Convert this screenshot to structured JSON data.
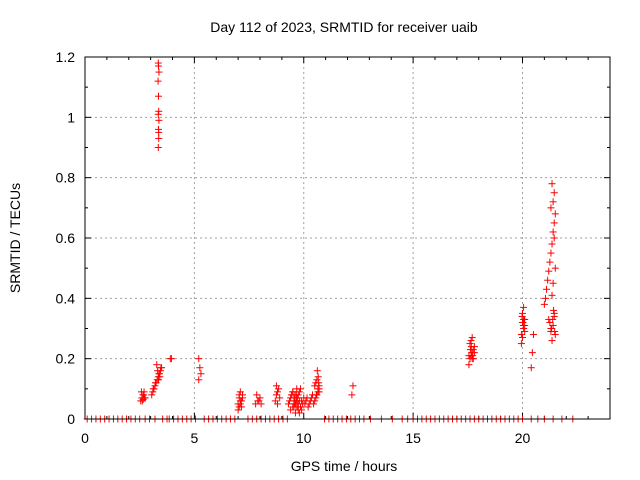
{
  "chart_data": {
    "type": "scatter",
    "title": "Day 112 of 2023, SRMTID for receiver uaib",
    "xlabel": "GPS time / hours",
    "ylabel": "SRMTID / TECUs",
    "xlim": [
      0,
      24
    ],
    "ylim": [
      0,
      1.2
    ],
    "xticks": [
      0,
      5,
      10,
      15,
      20
    ],
    "xtick_labels": [
      "0",
      "5",
      "10",
      "15",
      "20"
    ],
    "yticks": [
      0,
      0.2,
      0.4,
      0.6,
      0.8,
      1,
      1.2
    ],
    "ytick_labels": [
      "0",
      "0.2",
      "0.4",
      "0.6",
      "0.8",
      "1",
      "1.2"
    ],
    "grid": true,
    "marker": "+",
    "color": "#ff0000",
    "series": [
      {
        "name": "SRMTID",
        "x": [
          0.1,
          0.3,
          0.5,
          0.7,
          0.9,
          1.1,
          1.3,
          1.5,
          1.7,
          1.9,
          2.1,
          2.3,
          2.5,
          2.75,
          2.95,
          3.2,
          3.55,
          3.75,
          3.85,
          4.05,
          4.25,
          4.45,
          4.65,
          4.85,
          5.05,
          5.45,
          5.65,
          5.85,
          6.05,
          6.25,
          6.45,
          6.65,
          6.85,
          7.45,
          7.65,
          7.85,
          8.05,
          8.25,
          8.45,
          8.65,
          8.85,
          9.05,
          9.25,
          10.95,
          11.15,
          11.35,
          11.55,
          11.75,
          11.95,
          12.15,
          12.35,
          12.55,
          12.75,
          13.05,
          13.55,
          14.05,
          14.5,
          14.75,
          15.0,
          15.2,
          15.4,
          15.6,
          15.8,
          16.0,
          16.2,
          16.4,
          16.6,
          16.8,
          17.0,
          17.2,
          17.4,
          17.6,
          17.8,
          18.0,
          18.2,
          18.4,
          18.6,
          18.8,
          19.0,
          19.2,
          19.4,
          19.6,
          19.8,
          20.0,
          20.4,
          20.7,
          21.0,
          21.4,
          21.8,
          22.3,
          2.55,
          2.6,
          2.65,
          2.7,
          2.75,
          2.62,
          2.68,
          2.72,
          2.58,
          2.66,
          3.05,
          3.1,
          3.15,
          3.2,
          3.25,
          3.3,
          3.35,
          3.4,
          3.45,
          3.5,
          3.28,
          3.32,
          3.38,
          3.42,
          3.22,
          3.47,
          3.36,
          3.12,
          3.35,
          3.37,
          3.36,
          3.38,
          3.35,
          3.37,
          3.36,
          3.34,
          3.38,
          3.36,
          3.35,
          3.37,
          3.9,
          3.95,
          5.2,
          5.25,
          5.3,
          5.2,
          7.0,
          7.05,
          7.1,
          7.15,
          7.2,
          7.05,
          7.1,
          7.0,
          7.15,
          7.1,
          7.05,
          7.2,
          7.8,
          7.9,
          8.0,
          7.85,
          7.95,
          8.05,
          8.7,
          8.75,
          8.8,
          8.85,
          8.9,
          8.75,
          8.8,
          9.3,
          9.35,
          9.4,
          9.45,
          9.5,
          9.55,
          9.6,
          9.65,
          9.7,
          9.75,
          9.8,
          9.85,
          9.9,
          9.95,
          10.0,
          9.4,
          9.5,
          9.6,
          9.7,
          9.8,
          9.9,
          9.45,
          9.55,
          9.65,
          9.75,
          9.85,
          9.5,
          9.6,
          9.7,
          9.8,
          9.55,
          9.65,
          9.75,
          9.62,
          9.68,
          9.58,
          9.72,
          9.66,
          10.05,
          10.1,
          10.15,
          10.2,
          10.25,
          10.3,
          10.35,
          10.4,
          10.45,
          10.5,
          10.55,
          10.6,
          10.65,
          10.7,
          10.5,
          10.55,
          10.6,
          10.65,
          10.7,
          10.58,
          10.62,
          10.66,
          10.68,
          10.7,
          12.2,
          12.25,
          17.55,
          17.6,
          17.65,
          17.7,
          17.75,
          17.8,
          17.6,
          17.65,
          17.7,
          17.75,
          17.55,
          17.8,
          17.62,
          17.68,
          17.72,
          17.66,
          17.7,
          19.95,
          20.0,
          20.05,
          20.1,
          20.0,
          20.05,
          19.95,
          20.1,
          20.0,
          20.05,
          20.1,
          19.98,
          20.02,
          20.08,
          20.04,
          20.4,
          20.45,
          20.5,
          21.0,
          21.05,
          21.1,
          21.15,
          21.2,
          21.25,
          21.3,
          21.35,
          21.4,
          21.45,
          21.5,
          21.4,
          21.45,
          21.35,
          21.3,
          21.45,
          21.5,
          21.4,
          21.35,
          21.45,
          21.3,
          21.25,
          21.2,
          21.3,
          21.4,
          21.35,
          21.45,
          21.5,
          21.42,
          21.38,
          21.33,
          21.47
        ],
        "y": [
          0,
          0,
          0,
          0,
          0,
          0,
          0,
          0,
          0,
          0,
          0,
          0,
          0,
          0,
          0,
          0,
          0,
          0,
          0,
          0,
          0,
          0,
          0,
          0,
          0,
          0,
          0,
          0,
          0,
          0,
          0,
          0,
          0,
          0,
          0,
          0,
          0,
          0,
          0,
          0,
          0,
          0,
          0,
          0,
          0,
          0,
          0,
          0,
          0,
          0,
          0,
          0,
          0,
          0,
          0,
          0,
          0,
          0,
          0,
          0,
          0,
          0,
          0,
          0,
          0,
          0,
          0,
          0,
          0,
          0,
          0,
          0,
          0,
          0,
          0,
          0,
          0,
          0,
          0,
          0,
          0,
          0,
          0,
          0,
          0,
          0,
          0,
          0,
          0,
          0,
          0.06,
          0.07,
          0.08,
          0.09,
          0.07,
          0.06,
          0.08,
          0.07,
          0.09,
          0.065,
          0.08,
          0.09,
          0.1,
          0.11,
          0.12,
          0.13,
          0.14,
          0.15,
          0.16,
          0.17,
          0.18,
          0.16,
          0.15,
          0.14,
          0.12,
          0.17,
          0.13,
          0.1,
          0.9,
          0.93,
          0.96,
          0.99,
          1.01,
          1.02,
          1.07,
          1.12,
          1.15,
          1.17,
          1.18,
          0.95,
          0.2,
          0.2,
          0.2,
          0.17,
          0.15,
          0.13,
          0.03,
          0.04,
          0.05,
          0.06,
          0.07,
          0.08,
          0.09,
          0.05,
          0.04,
          0.06,
          0.07,
          0.08,
          0.05,
          0.06,
          0.07,
          0.08,
          0.06,
          0.05,
          0.06,
          0.08,
          0.09,
          0.1,
          0.07,
          0.11,
          0.05,
          0.05,
          0.06,
          0.07,
          0.08,
          0.09,
          0.04,
          0.05,
          0.06,
          0.07,
          0.08,
          0.09,
          0.1,
          0.06,
          0.05,
          0.07,
          0.03,
          0.04,
          0.05,
          0.06,
          0.02,
          0.03,
          0.08,
          0.07,
          0.06,
          0.05,
          0.04,
          0.09,
          0.08,
          0.07,
          0.06,
          0.05,
          0.04,
          0.03,
          0.02,
          0.1,
          0.06,
          0.04,
          0.08,
          0.05,
          0.06,
          0.07,
          0.04,
          0.05,
          0.06,
          0.07,
          0.08,
          0.05,
          0.06,
          0.07,
          0.08,
          0.09,
          0.1,
          0.11,
          0.12,
          0.13,
          0.1,
          0.09,
          0.08,
          0.16,
          0.14,
          0.12,
          0.11,
          0.08,
          0.11,
          0.18,
          0.2,
          0.21,
          0.22,
          0.23,
          0.24,
          0.25,
          0.26,
          0.27,
          0.2,
          0.21,
          0.22,
          0.23,
          0.22,
          0.21,
          0.24,
          0.2,
          0.25,
          0.27,
          0.3,
          0.33,
          0.35,
          0.37,
          0.28,
          0.31,
          0.32,
          0.33,
          0.29,
          0.34,
          0.32,
          0.33,
          0.31,
          0.17,
          0.22,
          0.28,
          0.38,
          0.4,
          0.43,
          0.46,
          0.49,
          0.52,
          0.55,
          0.58,
          0.62,
          0.65,
          0.68,
          0.72,
          0.75,
          0.78,
          0.7,
          0.6,
          0.5,
          0.45,
          0.41,
          0.35,
          0.3,
          0.32,
          0.33,
          0.29,
          0.31,
          0.26,
          0.34,
          0.28,
          0.36,
          0.33,
          0.3,
          0.29
        ]
      }
    ]
  }
}
